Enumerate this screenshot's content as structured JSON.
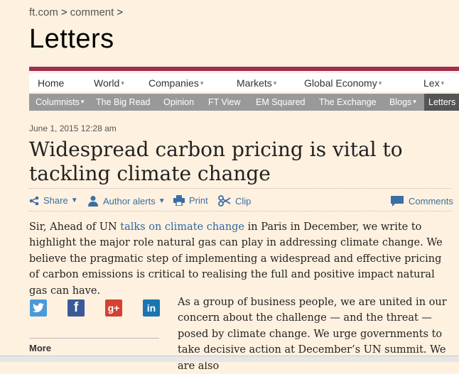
{
  "breadcrumb": {
    "site": "ft.com",
    "section": "comment"
  },
  "section_title": "Letters",
  "primary_nav": [
    {
      "label": "Home",
      "dropdown": false
    },
    {
      "label": "World",
      "dropdown": true
    },
    {
      "label": "Companies",
      "dropdown": true
    },
    {
      "label": "Markets",
      "dropdown": true
    },
    {
      "label": "Global Economy",
      "dropdown": true
    },
    {
      "label": "Lex",
      "dropdown": true
    }
  ],
  "secondary_nav": [
    {
      "label": "Columnists",
      "dropdown": true
    },
    {
      "label": "The Big Read",
      "dropdown": false
    },
    {
      "label": "Opinion",
      "dropdown": false
    },
    {
      "label": "FT View",
      "dropdown": false
    },
    {
      "label": "EM Squared",
      "dropdown": false
    },
    {
      "label": "The Exchange",
      "dropdown": false
    },
    {
      "label": "Blogs",
      "dropdown": true
    },
    {
      "label": "Letters",
      "dropdown": false,
      "active": true
    }
  ],
  "article": {
    "date": "June 1, 2015 12:28 am",
    "headline": "Widespread carbon pricing is vital to tackling climate change",
    "para1_before": "Sir, Ahead of UN ",
    "para1_link": "talks on climate change",
    "para1_after": " in Paris in December, we write to highlight the major role natural gas can play in addressing climate change. We believe the pragmatic step of implementing a widespread and effective pricing of carbon emissions is critical to realising the full and positive impact natural gas can have.",
    "para2": "As a group of business people, we are united in our concern about the challenge — and the threat — posed by climate change. We urge governments to take decisive action at December’s UN summit. We are also"
  },
  "tools": {
    "share": "Share",
    "author_alerts": "Author alerts",
    "print": "Print",
    "clip": "Clip",
    "comments": "Comments"
  },
  "social": [
    {
      "name": "twitter",
      "glyph": "t",
      "color": "#4a9ad8"
    },
    {
      "name": "facebook",
      "glyph": "f",
      "color": "#3b5998"
    },
    {
      "name": "google-plus",
      "glyph": "g+",
      "color": "#d44132"
    },
    {
      "name": "linkedin",
      "glyph": "in",
      "color": "#1a75b0"
    }
  ],
  "more_label": "More",
  "colors": {
    "accent": "#9e2f50",
    "background": "#fff1e0",
    "link": "#2b6aa3"
  }
}
